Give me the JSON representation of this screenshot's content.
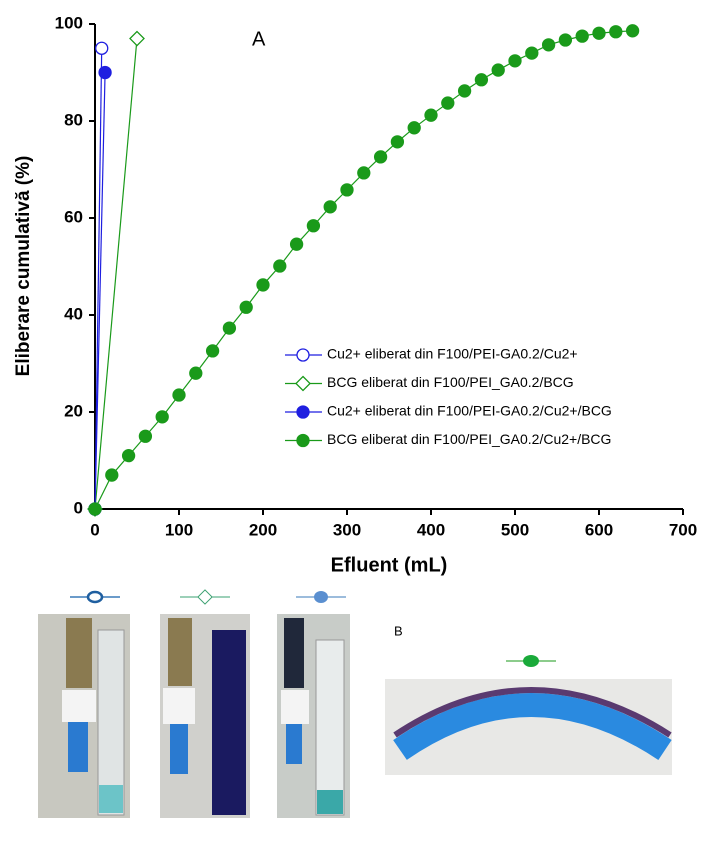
{
  "chart_data": {
    "type": "scatter-line",
    "panel_label": "A",
    "xlabel": "Efluent (mL)",
    "ylabel": "Eliberare cumulativă (%)",
    "xlim": [
      0,
      700
    ],
    "xticks": [
      0,
      100,
      200,
      300,
      400,
      500,
      600,
      700
    ],
    "ylim": [
      0,
      100
    ],
    "yticks": [
      0,
      20,
      40,
      60,
      80,
      100
    ],
    "series": [
      {
        "name": "Cu2+ eliberat din F100/PEI-GA0.2/Cu2+",
        "color": "#1f1fe0",
        "marker": "circle",
        "filled": false,
        "x": [
          0,
          8
        ],
        "values": [
          0,
          95
        ]
      },
      {
        "name": "BCG eliberat din F100/PEI_GA0.2/BCG",
        "color": "#1a9a1a",
        "marker": "diamond",
        "filled": false,
        "x": [
          0,
          50
        ],
        "values": [
          0,
          97
        ]
      },
      {
        "name": "Cu2+ eliberat din F100/PEI-GA0.2/Cu2+/BCG",
        "color": "#1f1fe0",
        "marker": "circle",
        "filled": true,
        "x": [
          0,
          12
        ],
        "values": [
          0,
          90
        ]
      },
      {
        "name": "BCG eliberat din F100/PEI_GA0.2/Cu2+/BCG",
        "color": "#1a9a1a",
        "marker": "circle",
        "filled": true,
        "x": [
          0,
          20,
          40,
          60,
          80,
          100,
          120,
          140,
          160,
          180,
          200,
          220,
          240,
          260,
          280,
          300,
          320,
          340,
          360,
          380,
          400,
          420,
          440,
          460,
          480,
          500,
          520,
          540,
          560,
          580,
          600,
          620,
          640
        ],
        "values": [
          0,
          7,
          11,
          15,
          19,
          23.5,
          28,
          32.6,
          37.3,
          41.6,
          46.2,
          50.1,
          54.6,
          58.4,
          62.3,
          65.8,
          69.3,
          72.6,
          75.7,
          78.6,
          81.2,
          83.7,
          86.2,
          88.5,
          90.5,
          92.4,
          94,
          95.7,
          96.7,
          97.5,
          98.1,
          98.4,
          98.6
        ]
      }
    ],
    "photo_panel_label": "B"
  }
}
